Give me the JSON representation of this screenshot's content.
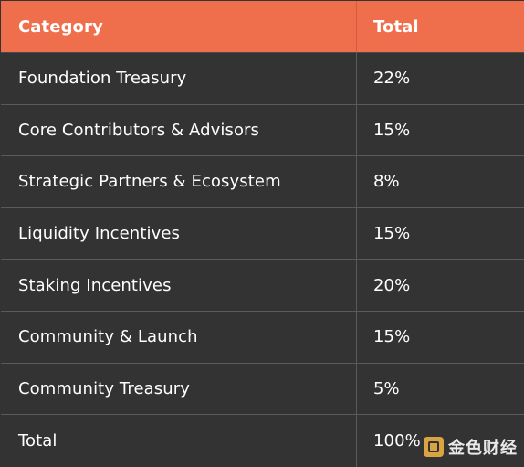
{
  "table": {
    "headers": [
      "Category",
      "Total"
    ],
    "rows": [
      {
        "category": "Foundation Treasury",
        "total": "22%"
      },
      {
        "category": "Core Contributors & Advisors",
        "total": "15%"
      },
      {
        "category": "Strategic Partners & Ecosystem",
        "total": "8%"
      },
      {
        "category": "Liquidity Incentives",
        "total": "15%"
      },
      {
        "category": "Staking Incentives",
        "total": "20%"
      },
      {
        "category": "Community & Launch",
        "total": "15%"
      },
      {
        "category": "Community Treasury",
        "total": "5%"
      },
      {
        "category": "Total",
        "total": "100%"
      }
    ]
  },
  "watermark": {
    "text": "金色财经",
    "icon": "jinse-logo-icon"
  },
  "colors": {
    "header_bg": "#ef6f4c",
    "row_bg": "#333333",
    "text": "#ffffff",
    "grid": "#5a5a5a"
  }
}
